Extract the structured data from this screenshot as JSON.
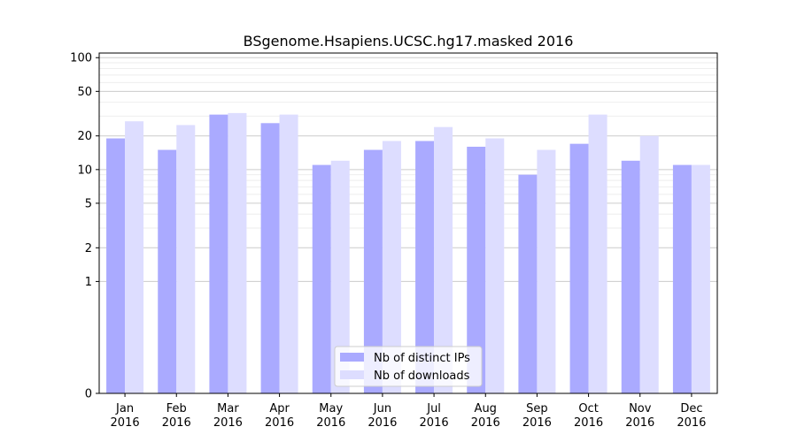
{
  "chart_data": {
    "type": "bar",
    "title": "BSgenome.Hsapiens.UCSC.hg17.masked 2016",
    "xlabel": "",
    "ylabel": "",
    "y_scale": "symlog",
    "ylim": [
      0,
      110
    ],
    "y_ticks": [
      0,
      1,
      2,
      5,
      10,
      20,
      50,
      100
    ],
    "y_tick_labels": [
      "0",
      "1",
      "2",
      "5",
      "10",
      "20",
      "50",
      "100"
    ],
    "categories": [
      [
        "Jan",
        "2016"
      ],
      [
        "Feb",
        "2016"
      ],
      [
        "Mar",
        "2016"
      ],
      [
        "Apr",
        "2016"
      ],
      [
        "May",
        "2016"
      ],
      [
        "Jun",
        "2016"
      ],
      [
        "Jul",
        "2016"
      ],
      [
        "Aug",
        "2016"
      ],
      [
        "Sep",
        "2016"
      ],
      [
        "Oct",
        "2016"
      ],
      [
        "Nov",
        "2016"
      ],
      [
        "Dec",
        "2016"
      ]
    ],
    "series": [
      {
        "name": "Nb of distinct IPs",
        "color": "#aaaaff",
        "values": [
          19,
          15,
          31,
          26,
          11,
          15,
          18,
          16,
          9,
          17,
          12,
          11
        ]
      },
      {
        "name": "Nb of downloads",
        "color": "#ddddff",
        "values": [
          27,
          25,
          32,
          31,
          12,
          18,
          24,
          19,
          15,
          31,
          20,
          11
        ]
      }
    ],
    "legend_position": "bottom-center",
    "grid": true
  }
}
